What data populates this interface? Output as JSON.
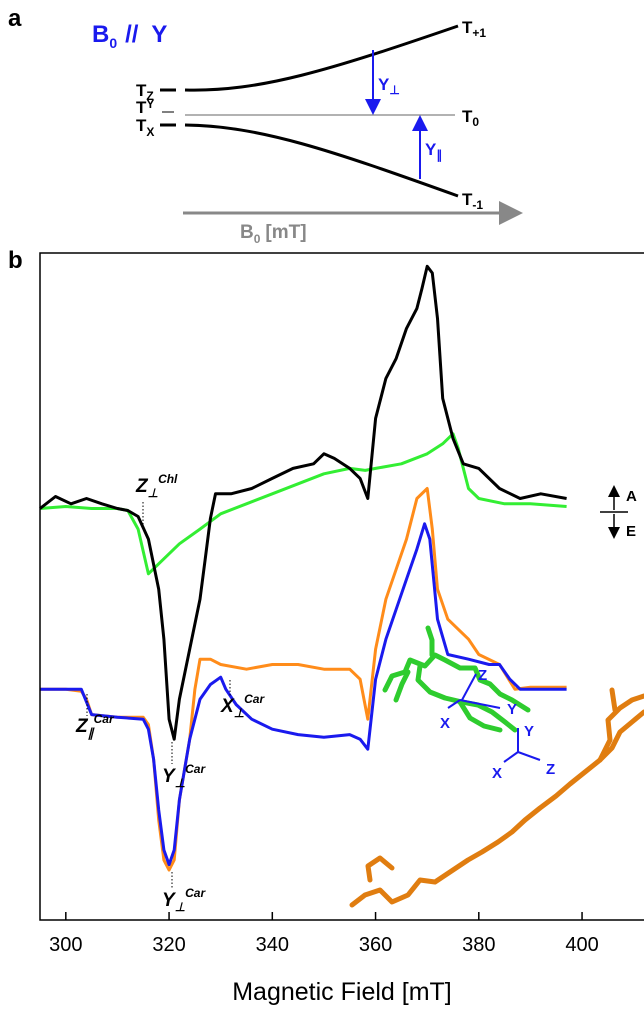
{
  "panel_labels": [
    "a",
    "b"
  ],
  "diagram": {
    "field_label": {
      "base": "B",
      "sub": "0",
      "rest": "//  Y"
    },
    "levels": [
      {
        "main": "T",
        "sub": "Z"
      },
      {
        "main": "T",
        "sub": "Y"
      },
      {
        "main": "T",
        "sub": "X"
      },
      {
        "main": "T",
        "sub": "+1"
      },
      {
        "main": "T",
        "sub": "0"
      },
      {
        "main": "T",
        "sub": "-1"
      }
    ],
    "transitions": [
      {
        "main": "Y",
        "sub": "⊥"
      },
      {
        "main": "Y",
        "sub": "∥"
      }
    ],
    "axis_label": {
      "base": "B",
      "sub": "0",
      "rest": "[mT]"
    }
  },
  "chart_data": {
    "type": "line",
    "x_label": "Magnetic Field [mT]",
    "xlim": [
      295,
      412
    ],
    "xticks": [
      300,
      320,
      340,
      360,
      380,
      400
    ],
    "ylim": [
      0,
      100
    ],
    "series": [
      {
        "color": "#33ee33",
        "x": [
          295,
          300,
          305,
          310,
          312,
          314,
          316,
          318,
          322,
          326,
          330,
          335,
          340,
          345,
          350,
          355,
          358,
          360,
          365,
          370,
          373,
          375,
          376,
          378,
          380,
          385,
          390,
          397
        ],
        "values": [
          61.7,
          62.0,
          61.7,
          61.7,
          61.4,
          58.6,
          51.9,
          53.4,
          56.4,
          58.6,
          60.9,
          62.4,
          63.9,
          65.4,
          66.9,
          67.7,
          67.4,
          67.7,
          68.4,
          69.9,
          71.4,
          72.9,
          70.7,
          64.7,
          63.2,
          62.4,
          62.4,
          62.0
        ]
      },
      {
        "color": "#000000",
        "x": [
          295,
          298,
          301,
          304,
          307,
          310,
          312,
          314,
          316,
          318,
          319,
          320,
          321,
          322,
          324,
          326,
          327,
          328,
          329,
          332,
          336,
          340,
          344,
          348,
          350,
          352,
          355,
          357,
          358.5,
          360,
          362,
          364,
          366,
          368,
          369,
          370,
          371,
          372,
          373,
          375,
          377,
          380,
          384,
          388,
          392,
          397
        ],
        "values": [
          61.7,
          63.5,
          62.4,
          63.2,
          62.4,
          61.7,
          61.4,
          60.5,
          57.1,
          49.6,
          42.1,
          30.1,
          27.1,
          33.1,
          40.6,
          48.1,
          54.1,
          60.2,
          63.9,
          63.9,
          64.7,
          66.2,
          67.7,
          68.4,
          69.9,
          69.2,
          67.7,
          66.2,
          63.2,
          75.2,
          81.2,
          84.2,
          88.7,
          91.7,
          94.7,
          98.0,
          97.0,
          90.2,
          78.2,
          72.2,
          68.4,
          67.7,
          64.7,
          63.2,
          63.9,
          63.2
        ]
      },
      {
        "color": "#ff8c1a",
        "x": [
          295,
          300,
          303,
          304,
          305,
          310,
          315,
          316,
          317,
          318,
          319,
          320,
          321,
          322,
          324,
          325,
          326,
          328,
          330,
          335,
          340,
          345,
          350,
          355,
          357,
          358.5,
          360,
          362,
          364,
          366,
          368,
          370,
          371,
          372,
          374,
          378,
          380,
          384,
          387,
          390,
          397
        ],
        "values": [
          34.6,
          34.6,
          34.3,
          33.1,
          30.8,
          30.4,
          30.4,
          29.3,
          24.1,
          15.0,
          9.0,
          7.5,
          9.0,
          18.0,
          27.1,
          34.6,
          39.1,
          39.1,
          38.3,
          37.6,
          38.3,
          38.3,
          37.6,
          37.6,
          36.1,
          30.1,
          40.6,
          48.1,
          52.6,
          57.1,
          63.2,
          64.7,
          58.6,
          49.6,
          45.1,
          42.1,
          39.8,
          38.3,
          34.6,
          34.9,
          34.9
        ]
      },
      {
        "color": "#1a1aee",
        "x": [
          295,
          303,
          305,
          310,
          315,
          316,
          317,
          318,
          319,
          320,
          321,
          322,
          324,
          326,
          328,
          330,
          331,
          333,
          336,
          340,
          345,
          350,
          355,
          357,
          358.5,
          360,
          362,
          364,
          366,
          368,
          369.5,
          370.5,
          372,
          374,
          378,
          382,
          384,
          386,
          388,
          397
        ],
        "values": [
          34.6,
          34.6,
          30.8,
          30.4,
          30.1,
          28.6,
          24.1,
          16.5,
          10.5,
          8.3,
          10.5,
          18.0,
          27.1,
          33.1,
          35.3,
          36.4,
          34.6,
          32.3,
          30.1,
          28.6,
          27.8,
          27.4,
          27.8,
          27.1,
          25.6,
          36.1,
          42.1,
          46.6,
          51.1,
          55.6,
          59.4,
          57.1,
          45.1,
          39.8,
          39.1,
          38.3,
          38.3,
          36.1,
          34.6,
          34.6
        ]
      }
    ],
    "annotations": [
      {
        "main": "Z",
        "sub": "⊥",
        "sup": "Chl"
      },
      {
        "main": "Z",
        "sub": "∥",
        "sup": "Car"
      },
      {
        "main": "Y",
        "sub": "⊥",
        "sup": "Car"
      },
      {
        "main": "X",
        "sub": "⊥",
        "sup": "Car"
      },
      {
        "main": "Y",
        "sub": "⊥",
        "sup": "Car"
      }
    ],
    "polarity": {
      "up": "A",
      "down": "E"
    },
    "structure_labels": [
      "Z",
      "Y",
      "X",
      "Y",
      "X",
      "Z"
    ]
  }
}
